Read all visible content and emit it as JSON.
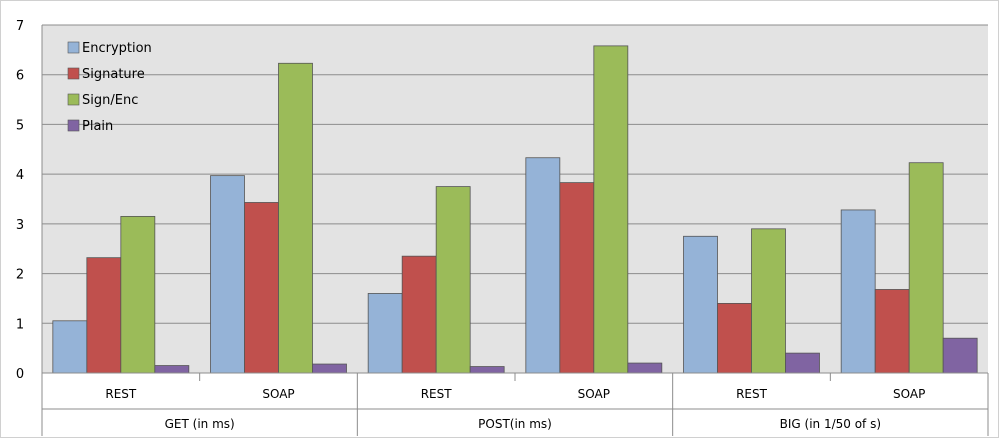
{
  "chart_data": {
    "type": "bar",
    "groups": [
      {
        "label": "GET (in ms)",
        "subcategories": [
          "REST",
          "SOAP"
        ]
      },
      {
        "label": "POST(in ms)",
        "subcategories": [
          "REST",
          "SOAP"
        ]
      },
      {
        "label": "BIG (in 1/50 of s)",
        "subcategories": [
          "REST",
          "SOAP"
        ]
      }
    ],
    "series": [
      {
        "name": "Encryption",
        "color": "#95b3d7",
        "values": [
          1.05,
          3.97,
          1.6,
          4.33,
          2.75,
          3.28
        ]
      },
      {
        "name": "Signature",
        "color": "#c0504d",
        "values": [
          2.32,
          3.43,
          2.35,
          3.83,
          1.4,
          1.68
        ]
      },
      {
        "name": "Sign/Enc",
        "color": "#9bbb59",
        "values": [
          3.15,
          6.23,
          3.75,
          6.58,
          2.9,
          4.23
        ]
      },
      {
        "name": "Plain",
        "color": "#8064a2",
        "values": [
          0.15,
          0.18,
          0.13,
          0.2,
          0.4,
          0.7
        ]
      }
    ],
    "ylim": [
      0,
      7
    ],
    "yticks": [
      "0",
      "1",
      "2",
      "3",
      "4",
      "5",
      "6",
      "7"
    ],
    "grid": true,
    "legend": "top-left",
    "plot_background": "#e3e3e3"
  }
}
